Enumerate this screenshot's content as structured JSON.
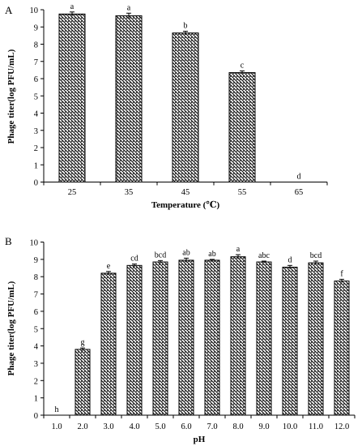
{
  "chart_data": [
    {
      "panel": "A",
      "type": "bar",
      "xlabel": "Temperature (℃)",
      "ylabel": "Phage titer(log PFU/mL)",
      "ylim": [
        0,
        10
      ],
      "yticks": [
        "0",
        "1",
        "2",
        "3",
        "4",
        "5",
        "6",
        "7",
        "8",
        "9",
        "10"
      ],
      "categories": [
        "25",
        "35",
        "45",
        "55",
        "65"
      ],
      "values": [
        9.75,
        9.65,
        8.65,
        6.35,
        0
      ],
      "errors": [
        0.12,
        0.15,
        0.1,
        0.1,
        0
      ],
      "letters": [
        "a",
        "a",
        "b",
        "c",
        "d"
      ],
      "bar_fill": "diagonal-hatch",
      "grid": false
    },
    {
      "panel": "B",
      "type": "bar",
      "xlabel": "pH",
      "ylabel": "Phage titer(log PFU/mL)",
      "ylim": [
        0,
        10
      ],
      "yticks": [
        "0",
        "1",
        "2",
        "3",
        "4",
        "5",
        "6",
        "7",
        "8",
        "9",
        "10"
      ],
      "categories": [
        "1.0",
        "2.0",
        "3.0",
        "4.0",
        "5.0",
        "6.0",
        "7.0",
        "8.0",
        "9.0",
        "10.0",
        "11.0",
        "12.0"
      ],
      "values": [
        0,
        3.8,
        8.2,
        8.65,
        8.85,
        8.95,
        8.95,
        9.15,
        8.85,
        8.55,
        8.8,
        7.75
      ],
      "errors": [
        0,
        0.08,
        0.1,
        0.08,
        0.08,
        0.12,
        0.05,
        0.12,
        0.05,
        0.1,
        0.1,
        0.1
      ],
      "letters": [
        "h",
        "g",
        "e",
        "cd",
        "bcd",
        "ab",
        "ab",
        "a",
        "abc",
        "d",
        "bcd",
        "f"
      ],
      "bar_fill": "diagonal-hatch",
      "grid": false
    }
  ]
}
